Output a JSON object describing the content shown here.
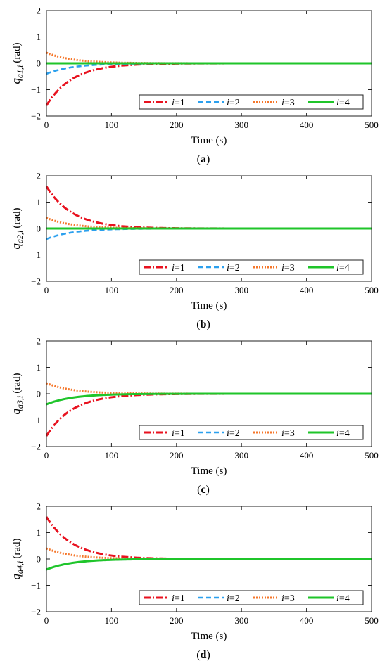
{
  "series_style": [
    {
      "color": "#e8121f",
      "dash": "10,3,2,3",
      "width": 3
    },
    {
      "color": "#2ba0ee",
      "dash": "7,4",
      "width": 2.6
    },
    {
      "color": "#f5772b",
      "dash": "2,2",
      "width": 3
    },
    {
      "color": "#1fc52a",
      "dash": "",
      "width": 3
    }
  ],
  "chart_data": [
    {
      "type": "line",
      "panel": "a",
      "caption_letter": "a",
      "ylabel_main": "q",
      "ylabel_sub": "a1,i",
      "ylabel_unit": "(rad)",
      "xlabel": "Time (s)",
      "xlim": [
        0,
        500
      ],
      "ylim": [
        -2,
        2
      ],
      "xticks": [
        "0",
        "100",
        "200",
        "300",
        "400",
        "500"
      ],
      "yticks": [
        "−2",
        "−1",
        "0",
        "1",
        "2"
      ],
      "legend_position": "lower-right",
      "series": [
        {
          "name": "i=1",
          "y0": -1.6
        },
        {
          "name": "i=2",
          "y0": -0.4
        },
        {
          "name": "i=3",
          "y0": 0.4
        },
        {
          "name": "i=4",
          "y0": 0.0
        }
      ]
    },
    {
      "type": "line",
      "panel": "b",
      "caption_letter": "b",
      "ylabel_main": "q",
      "ylabel_sub": "a2,i",
      "ylabel_unit": "(rad)",
      "xlabel": "Time (s)",
      "xlim": [
        0,
        500
      ],
      "ylim": [
        -2,
        2
      ],
      "xticks": [
        "0",
        "100",
        "200",
        "300",
        "400",
        "500"
      ],
      "yticks": [
        "−2",
        "−1",
        "0",
        "1",
        "2"
      ],
      "legend_position": "lower-right",
      "series": [
        {
          "name": "i=1",
          "y0": 1.6
        },
        {
          "name": "i=2",
          "y0": -0.4
        },
        {
          "name": "i=3",
          "y0": 0.4
        },
        {
          "name": "i=4",
          "y0": 0.0
        }
      ]
    },
    {
      "type": "line",
      "panel": "c",
      "caption_letter": "c",
      "ylabel_main": "q",
      "ylabel_sub": "a3,i",
      "ylabel_unit": "(rad)",
      "xlabel": "Time (s)",
      "xlim": [
        0,
        500
      ],
      "ylim": [
        -2,
        2
      ],
      "xticks": [
        "0",
        "100",
        "200",
        "300",
        "400",
        "500"
      ],
      "yticks": [
        "−2",
        "−1",
        "0",
        "1",
        "2"
      ],
      "legend_position": "lower-right",
      "series": [
        {
          "name": "i=1",
          "y0": -1.6
        },
        {
          "name": "i=2",
          "y0": -0.4
        },
        {
          "name": "i=3",
          "y0": 0.4
        },
        {
          "name": "i=4",
          "y0": -0.4
        }
      ]
    },
    {
      "type": "line",
      "panel": "d",
      "caption_letter": "d",
      "ylabel_main": "q",
      "ylabel_sub": "a4,i",
      "ylabel_unit": "(rad)",
      "xlabel": "Time (s)",
      "xlim": [
        0,
        500
      ],
      "ylim": [
        -2,
        2
      ],
      "xticks": [
        "0",
        "100",
        "200",
        "300",
        "400",
        "500"
      ],
      "yticks": [
        "−2",
        "−1",
        "0",
        "1",
        "2"
      ],
      "legend_position": "lower-right",
      "series": [
        {
          "name": "i=1",
          "y0": 1.6
        },
        {
          "name": "i=2",
          "y0": -0.4
        },
        {
          "name": "i=3",
          "y0": 0.4
        },
        {
          "name": "i=4",
          "y0": -0.4
        }
      ]
    }
  ]
}
